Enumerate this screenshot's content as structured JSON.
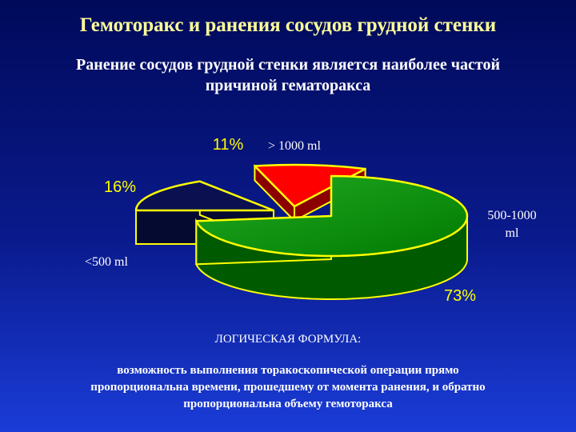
{
  "slide": {
    "title": "Гемоторакс и ранения сосудов грудной стенки",
    "subtitle_lines": [
      "Ранение сосудов грудной стенки является наиболее частой",
      "причиной гематоракса"
    ]
  },
  "chart_data": {
    "type": "pie",
    "title": "",
    "slices": [
      {
        "label": "> 1000 ml",
        "percent_label": "11%",
        "value": 11,
        "color": "#ff0000"
      },
      {
        "label": "500-1000 ml",
        "percent_label": "16%",
        "value": 16,
        "color": "#0a1050"
      },
      {
        "label": "<500 ml",
        "percent_label": "73%",
        "value": 73,
        "color": "#008800"
      }
    ],
    "category_label_lines": {
      "500-1000 ml": [
        "500-1000",
        "ml"
      ]
    },
    "colors": {
      "outline": "#ffff00",
      "percent_text": "#ffff00",
      "category_text": "#ffffff"
    }
  },
  "formula": {
    "title": "ЛОГИЧЕСКАЯ ФОРМУЛА:",
    "lines": [
      "возможность выполнения торакоскопической операции прямо",
      "пропорциональна времени, прошедшему от момента ранения, и обратно",
      "пропорциональна объему гемоторакса"
    ]
  }
}
